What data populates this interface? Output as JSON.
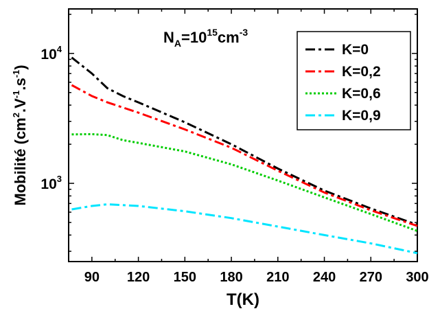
{
  "chart_data": {
    "type": "line",
    "title": "",
    "annotation": {
      "base": "N",
      "sub": "A",
      "mid": "=10",
      "sup": "15",
      "unit": "cm",
      "unit_sup": "-3"
    },
    "xlabel": "T(K)",
    "ylabel": {
      "parts": [
        {
          "t": "Mobilité (cm",
          "s": "n"
        },
        {
          "t": "2",
          "s": "sup"
        },
        {
          "t": ".V",
          "s": "n"
        },
        {
          "t": "-1",
          "s": "sup"
        },
        {
          "t": ".s",
          "s": "n"
        },
        {
          "t": "-1",
          "s": "sup"
        },
        {
          "t": ")",
          "s": "n"
        }
      ]
    },
    "xlim": [
      75,
      300
    ],
    "ylim": [
      250,
      22000
    ],
    "yscale": "log",
    "xticks": [
      90,
      120,
      150,
      180,
      210,
      240,
      270,
      300
    ],
    "yticks": [
      {
        "value": 1000,
        "base": "10",
        "exp": "3"
      },
      {
        "value": 10000,
        "base": "10",
        "exp": "4"
      }
    ],
    "legend_position": "top-right",
    "grid": false,
    "series": [
      {
        "name": "K=0",
        "color": "#000000",
        "dash": "dashdot",
        "points": [
          [
            77,
            9300
          ],
          [
            90,
            7000
          ],
          [
            100,
            5400
          ],
          [
            110,
            4700
          ],
          [
            120,
            4200
          ],
          [
            150,
            2950
          ],
          [
            180,
            2000
          ],
          [
            210,
            1300
          ],
          [
            240,
            880
          ],
          [
            270,
            640
          ],
          [
            300,
            480
          ]
        ]
      },
      {
        "name": "K=0,2",
        "color": "#ff0000",
        "dash": "dashdot",
        "points": [
          [
            77,
            5700
          ],
          [
            90,
            4700
          ],
          [
            100,
            4200
          ],
          [
            120,
            3500
          ],
          [
            150,
            2600
          ],
          [
            180,
            1880
          ],
          [
            210,
            1250
          ],
          [
            240,
            850
          ],
          [
            270,
            620
          ],
          [
            300,
            470
          ]
        ]
      },
      {
        "name": "K=0,6",
        "color": "#00cc00",
        "dash": "dot",
        "points": [
          [
            77,
            2380
          ],
          [
            90,
            2390
          ],
          [
            100,
            2350
          ],
          [
            110,
            2150
          ],
          [
            120,
            2050
          ],
          [
            150,
            1760
          ],
          [
            180,
            1400
          ],
          [
            210,
            1050
          ],
          [
            240,
            780
          ],
          [
            270,
            580
          ],
          [
            300,
            430
          ]
        ]
      },
      {
        "name": "K=0,9",
        "color": "#00e5ff",
        "dash": "dashdot",
        "points": [
          [
            77,
            630
          ],
          [
            90,
            670
          ],
          [
            100,
            690
          ],
          [
            120,
            670
          ],
          [
            150,
            610
          ],
          [
            180,
            540
          ],
          [
            210,
            465
          ],
          [
            240,
            400
          ],
          [
            270,
            345
          ],
          [
            300,
            290
          ]
        ]
      }
    ]
  }
}
